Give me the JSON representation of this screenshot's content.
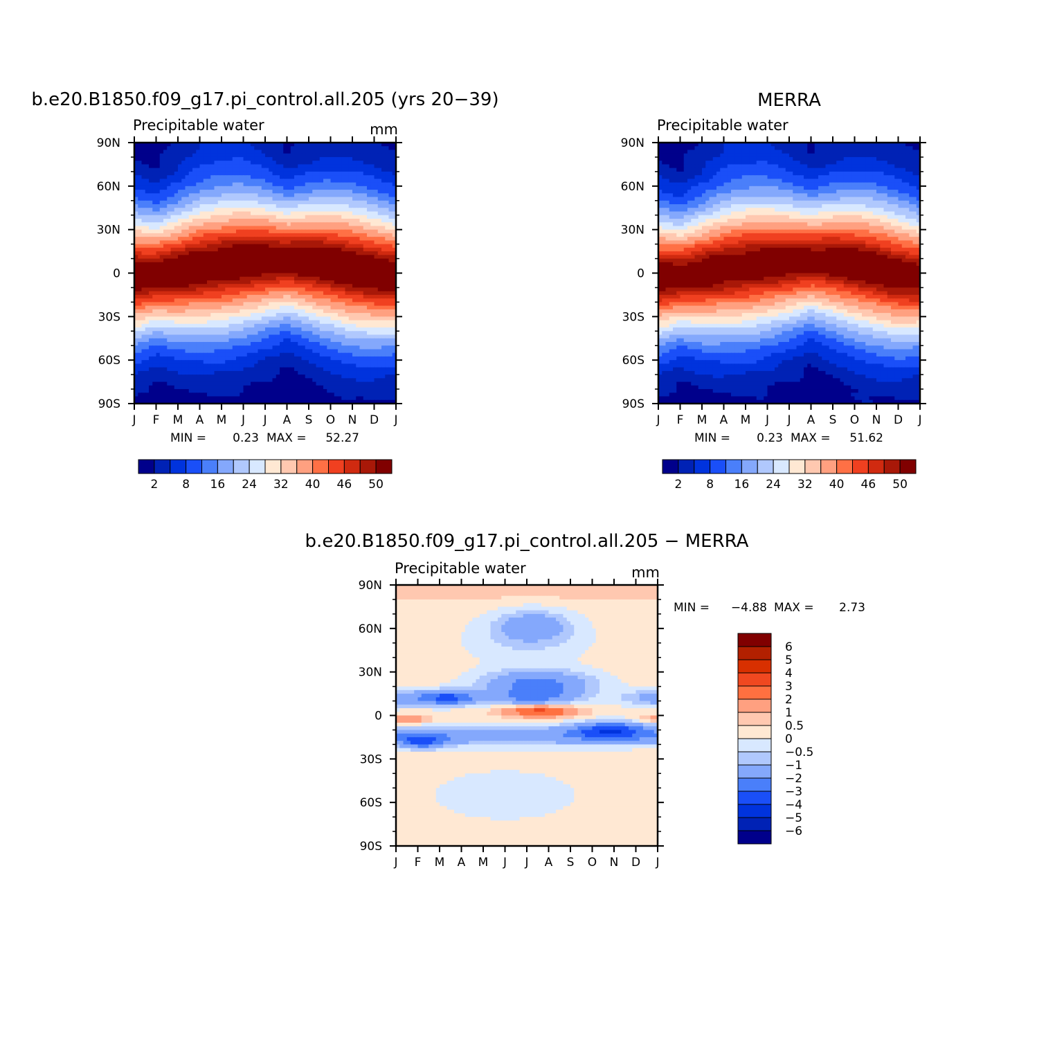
{
  "chart_data": [
    {
      "type": "heatmap",
      "title": "b.e20.B1850.f09_g17.pi_control.all.205 (yrs 20−39)",
      "subtitle_left": "Precipitable water",
      "units": "mm",
      "x_tick_labels": [
        "J",
        "F",
        "M",
        "A",
        "M",
        "J",
        "J",
        "A",
        "S",
        "O",
        "N",
        "D",
        "J"
      ],
      "y_tick_labels": [
        "90N",
        "60N",
        "30N",
        "0",
        "30S",
        "60S",
        "90S"
      ],
      "ylim": [
        -90,
        90
      ],
      "min_label": "MIN =",
      "min_value": "0.23",
      "max_label": "MAX =",
      "max_value": "52.27",
      "field": {
        "kind": "pw",
        "eq_lat": [
          -2,
          -1,
          1,
          4,
          6,
          8,
          9,
          9,
          8,
          6,
          3,
          0,
          -2
        ],
        "eq_amp": 52.27,
        "noise": 0.6
      },
      "colorbar": {
        "orientation": "horizontal",
        "colors": [
          "#00008b",
          "#0022b5",
          "#0033dd",
          "#1a4ff8",
          "#4a7ffa",
          "#84a8fc",
          "#b0c8fd",
          "#d8e8ff",
          "#ffe8d3",
          "#ffc8b0",
          "#ffa080",
          "#ff7045",
          "#f04020",
          "#d02a10",
          "#a81808",
          "#800000"
        ],
        "tick_labels": [
          "2",
          "8",
          "16",
          "24",
          "32",
          "40",
          "46",
          "50"
        ]
      }
    },
    {
      "type": "heatmap",
      "title": "MERRA",
      "subtitle_left": "Precipitable water",
      "x_tick_labels": [
        "J",
        "F",
        "M",
        "A",
        "M",
        "J",
        "J",
        "A",
        "S",
        "O",
        "N",
        "D",
        "J"
      ],
      "y_tick_labels": [
        "90N",
        "60N",
        "30N",
        "0",
        "30S",
        "60S",
        "90S"
      ],
      "ylim": [
        -90,
        90
      ],
      "min_label": "MIN =",
      "min_value": "0.23",
      "max_label": "MAX =",
      "max_value": "51.62",
      "field": {
        "kind": "pw",
        "eq_lat": [
          -3,
          -2,
          0,
          3,
          5,
          7,
          8,
          9,
          8,
          6,
          3,
          -1,
          -3
        ],
        "eq_amp": 51.62,
        "noise": 0.9
      },
      "colorbar": {
        "orientation": "horizontal",
        "colors": [
          "#00008b",
          "#0022b5",
          "#0033dd",
          "#1a4ff8",
          "#4a7ffa",
          "#84a8fc",
          "#b0c8fd",
          "#d8e8ff",
          "#ffe8d3",
          "#ffc8b0",
          "#ffa080",
          "#ff7045",
          "#f04020",
          "#d02a10",
          "#a81808",
          "#800000"
        ],
        "tick_labels": [
          "2",
          "8",
          "16",
          "24",
          "32",
          "40",
          "46",
          "50"
        ]
      }
    },
    {
      "type": "heatmap",
      "title": "b.e20.B1850.f09_g17.pi_control.all.205 − MERRA",
      "subtitle_left": "Precipitable water",
      "units": "mm",
      "x_tick_labels": [
        "J",
        "F",
        "M",
        "A",
        "M",
        "J",
        "J",
        "A",
        "S",
        "O",
        "N",
        "D",
        "J"
      ],
      "y_tick_labels": [
        "90N",
        "60N",
        "30N",
        "0",
        "30S",
        "60S",
        "90S"
      ],
      "ylim": [
        -90,
        90
      ],
      "min_label": "MIN =",
      "min_value": "−4.88",
      "max_label": "MAX =",
      "max_value": "2.73",
      "field": {
        "kind": "diff"
      },
      "colorbar": {
        "orientation": "vertical",
        "colors_top_to_bottom": [
          "#800000",
          "#b22000",
          "#d83000",
          "#f04820",
          "#ff7040",
          "#ffa080",
          "#ffc8b0",
          "#ffe8d3",
          "#d8e8ff",
          "#b0c8fd",
          "#84a8fc",
          "#4a7ffa",
          "#1a4ff8",
          "#0033dd",
          "#0022b5",
          "#00008b"
        ],
        "tick_labels_top_to_bottom": [
          "6",
          "5",
          "4",
          "3",
          "2",
          "1",
          "0.5",
          "0",
          "−0.5",
          "−1",
          "−2",
          "−3",
          "−4",
          "−5",
          "−6"
        ]
      }
    }
  ]
}
